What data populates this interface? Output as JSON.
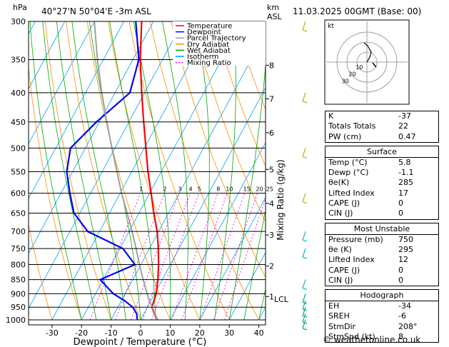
{
  "header": {
    "hpa_unit": "hPa",
    "location": "40°27'N  50°04'E  -3m  ASL",
    "km_unit": "km",
    "asl": "ASL",
    "datetime": "11.03.2025  00GMT  (Base: 00)"
  },
  "legend": [
    {
      "label": "Temperature",
      "color": "#ff0000"
    },
    {
      "label": "Dewpoint",
      "color": "#0000ff"
    },
    {
      "label": "Parcel Trajectory",
      "color": "#a0a0a0"
    },
    {
      "label": "Dry Adiabat",
      "color": "#ff8c00"
    },
    {
      "label": "Wet Adiabat",
      "color": "#00aa00"
    },
    {
      "label": "Isotherm",
      "color": "#00a0ff"
    },
    {
      "label": "Mixing Ratio",
      "color": "#ff00ff"
    }
  ],
  "chart_data": {
    "type": "line",
    "xlabel": "Dewpoint / Temperature (°C)",
    "ylabel": "Mixing Ratio (g/kg)",
    "x_ticks": [
      -30,
      -20,
      -10,
      0,
      10,
      20,
      30,
      40
    ],
    "pressure_ticks": [
      300,
      350,
      400,
      450,
      500,
      550,
      600,
      650,
      700,
      750,
      800,
      850,
      900,
      950,
      1000
    ],
    "km_ticks": [
      {
        "label": "8",
        "p": 358
      },
      {
        "label": "7",
        "p": 410
      },
      {
        "label": "6",
        "p": 470
      },
      {
        "label": "5",
        "p": 545
      },
      {
        "label": "4",
        "p": 625
      },
      {
        "label": "3",
        "p": 710
      },
      {
        "label": "2",
        "p": 805
      },
      {
        "label": "1",
        "p": 910
      }
    ],
    "lcl": {
      "label": "LCL",
      "p": 920
    },
    "mixing_ratio_labels": [
      "1",
      "2",
      "3",
      "4",
      "5",
      "8",
      "10",
      "15",
      "20",
      "25"
    ],
    "series": [
      {
        "name": "Temperature",
        "color": "#ff0000",
        "p": [
          1000,
          975,
          950,
          925,
          900,
          850,
          800,
          750,
          700,
          650,
          600,
          550,
          500,
          450,
          400,
          350,
          300
        ],
        "t": [
          5.8,
          3.5,
          1.5,
          1.0,
          0.5,
          -1.5,
          -4.0,
          -7.0,
          -10.5,
          -15.0,
          -19.5,
          -24.5,
          -29.5,
          -35.0,
          -41.0,
          -47.5,
          -54.0
        ]
      },
      {
        "name": "Dewpoint",
        "color": "#0000ff",
        "p": [
          1000,
          975,
          950,
          925,
          900,
          850,
          800,
          750,
          700,
          650,
          600,
          550,
          500,
          450,
          400,
          350,
          300
        ],
        "t": [
          -1.1,
          -2.5,
          -5.0,
          -9.0,
          -14.0,
          -21.0,
          -12.0,
          -19.0,
          -34.0,
          -42.0,
          -47.0,
          -52.0,
          -55.0,
          -51.0,
          -45.0,
          -48.0,
          -56.0
        ]
      },
      {
        "name": "Parcel Trajectory",
        "color": "#a0a0a0",
        "p": [
          1000,
          920,
          850,
          800,
          750,
          700,
          650,
          600,
          550,
          500,
          450,
          400,
          350,
          300
        ],
        "t": [
          5.8,
          -1.0,
          -6.5,
          -10.5,
          -14.5,
          -19.0,
          -24.0,
          -29.5,
          -35.0,
          -41.0,
          -47.5,
          -54.5,
          -62.0,
          -70.0
        ]
      }
    ]
  },
  "hodograph": {
    "unit_label": "kt",
    "ring_labels": [
      "10",
      "20",
      "30"
    ]
  },
  "indices_basic": [
    {
      "label": "K",
      "value": "-37"
    },
    {
      "label": "Totals Totals",
      "value": "22"
    },
    {
      "label": "PW (cm)",
      "value": "0.47"
    }
  ],
  "surface": {
    "title": "Surface",
    "rows": [
      {
        "label": "Temp (°C)",
        "value": "5.8"
      },
      {
        "label": "Dewp (°C)",
        "value": "-1.1"
      },
      {
        "label": "θe(K)",
        "value": "285"
      },
      {
        "label": "Lifted Index",
        "value": "17"
      },
      {
        "label": "CAPE (J)",
        "value": "0"
      },
      {
        "label": "CIN (J)",
        "value": "0"
      }
    ]
  },
  "most_unstable": {
    "title": "Most Unstable",
    "rows": [
      {
        "label": "Pressure (mb)",
        "value": "750"
      },
      {
        "label": "θe (K)",
        "value": "295"
      },
      {
        "label": "Lifted Index",
        "value": "12"
      },
      {
        "label": "CAPE (J)",
        "value": "0"
      },
      {
        "label": "CIN (J)",
        "value": "0"
      }
    ]
  },
  "hodograph_table": {
    "title": "Hodograph",
    "rows": [
      {
        "label": "EH",
        "value": "-34"
      },
      {
        "label": "SREH",
        "value": "-6"
      },
      {
        "label": "StmDir",
        "value": "208°"
      },
      {
        "label": "StmSpd (kt)",
        "value": "8"
      }
    ]
  },
  "footer": "© weatheronline.co.uk"
}
